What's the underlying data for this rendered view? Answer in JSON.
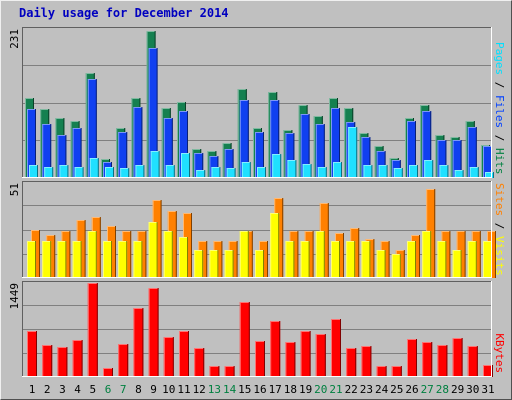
{
  "chart_data": [
    {
      "type": "bar",
      "panel": "top",
      "title": "Daily usage for December 2014",
      "ymax_label": "231",
      "ymax": 231,
      "categories": [
        "1",
        "2",
        "3",
        "4",
        "5",
        "6",
        "7",
        "8",
        "9",
        "10",
        "11",
        "12",
        "13",
        "14",
        "15",
        "16",
        "17",
        "18",
        "19",
        "20",
        "21",
        "22",
        "23",
        "24",
        "25",
        "26",
        "27",
        "28",
        "29",
        "30",
        "31"
      ],
      "weekend_days": [
        "6",
        "7",
        "13",
        "14",
        "20",
        "21",
        "27",
        "28"
      ],
      "legend": [
        {
          "text": "Pages",
          "color": "#00e0ff"
        },
        {
          "text": " / ",
          "color": "#000000"
        },
        {
          "text": "Files",
          "color": "#0040ff"
        },
        {
          "text": " / ",
          "color": "#000000"
        },
        {
          "text": "Hits",
          "color": "#008040"
        }
      ],
      "series": [
        {
          "name": "Hits",
          "color": "#158050",
          "values": [
            125,
            108,
            95,
            90,
            165,
            30,
            78,
            125,
            231,
            110,
            120,
            46,
            42,
            55,
            140,
            78,
            135,
            75,
            115,
            98,
            125,
            110,
            70,
            50,
            32,
            95,
            115,
            68,
            65,
            90,
            52
          ]
        },
        {
          "name": "Files",
          "color": "#1040f0",
          "values": [
            108,
            85,
            68,
            78,
            155,
            25,
            72,
            112,
            205,
            95,
            105,
            40,
            35,
            45,
            122,
            72,
            122,
            70,
            100,
            85,
            110,
            88,
            65,
            42,
            28,
            90,
            105,
            60,
            60,
            80,
            50
          ]
        },
        {
          "name": "Pages",
          "color": "#20e0ff",
          "values": [
            20,
            18,
            20,
            18,
            32,
            18,
            15,
            20,
            42,
            20,
            40,
            12,
            18,
            15,
            25,
            17,
            38,
            28,
            22,
            18,
            25,
            80,
            20,
            20,
            15,
            20,
            28,
            20,
            12,
            18,
            10
          ]
        }
      ]
    },
    {
      "type": "bar",
      "panel": "middle",
      "ymax_label": "51",
      "ymax": 51,
      "categories": [
        "1",
        "2",
        "3",
        "4",
        "5",
        "6",
        "7",
        "8",
        "9",
        "10",
        "11",
        "12",
        "13",
        "14",
        "15",
        "16",
        "17",
        "18",
        "19",
        "20",
        "21",
        "22",
        "23",
        "24",
        "25",
        "26",
        "27",
        "28",
        "29",
        "30",
        "31"
      ],
      "legend": [
        {
          "text": "Sites",
          "color": "#ff8000"
        },
        {
          "text": " / ",
          "color": "#000000"
        },
        {
          "text": "Visits",
          "color": "#ffff00"
        }
      ],
      "series": [
        {
          "name": "Sites",
          "color": "#ff8000",
          "values": [
            26,
            23,
            25,
            31,
            33,
            28,
            25,
            25,
            42,
            36,
            35,
            20,
            20,
            20,
            25,
            20,
            43,
            25,
            25,
            40,
            24,
            27,
            21,
            20,
            15,
            23,
            48,
            25,
            25,
            25,
            25
          ]
        },
        {
          "name": "Visits",
          "color": "#ffff00",
          "values": [
            20,
            20,
            20,
            20,
            25,
            20,
            20,
            20,
            30,
            25,
            22,
            15,
            15,
            15,
            25,
            15,
            35,
            20,
            20,
            25,
            20,
            20,
            20,
            15,
            13,
            20,
            25,
            20,
            15,
            20,
            20
          ]
        }
      ]
    },
    {
      "type": "bar",
      "panel": "bottom",
      "ymax_label": "1449",
      "ymax": 1449,
      "categories": [
        "1",
        "2",
        "3",
        "4",
        "5",
        "6",
        "7",
        "8",
        "9",
        "10",
        "11",
        "12",
        "13",
        "14",
        "15",
        "16",
        "17",
        "18",
        "19",
        "20",
        "21",
        "22",
        "23",
        "24",
        "25",
        "26",
        "27",
        "28",
        "29",
        "30",
        "31"
      ],
      "legend": [
        {
          "text": "KBytes",
          "color": "#ff0000"
        }
      ],
      "series": [
        {
          "name": "KBytes",
          "color": "#ff0000",
          "values": [
            704,
            493,
            458,
            563,
            1449,
            145,
            507,
            1058,
            1374,
            610,
            704,
            450,
            163,
            169,
            1150,
            550,
            856,
            533,
            704,
            669,
            893,
            440,
            473,
            163,
            163,
            589,
            539,
            500,
            603,
            474,
            180
          ]
        }
      ]
    }
  ]
}
